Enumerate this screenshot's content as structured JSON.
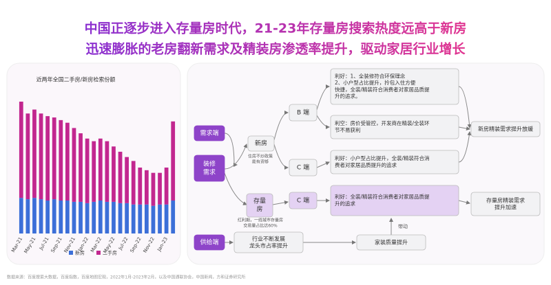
{
  "header": {
    "title_lines": [
      "中国正逐步进入存量房时代，21-23年存量房搜索热度远高于新房",
      "迅速膨胀的老房翻新需求及精装房渗透率提升，驱动家居行业增长"
    ]
  },
  "chart_data": {
    "type": "bar",
    "stacked": true,
    "title": "近两年全国二手房/新房检索份额",
    "categories": [
      "Mar-21",
      null,
      "May-21",
      null,
      "Jul-21",
      null,
      "Sep-21",
      null,
      "Nov-21",
      null,
      "Jan-22",
      null,
      "Mar-22",
      null,
      "May-22",
      null,
      "Jul-22",
      null,
      "Sep-22",
      null,
      "Nov-22",
      null,
      "Jan-23",
      null
    ],
    "series": [
      {
        "name": "新房",
        "color": "#3c6fd8",
        "values": [
          27,
          26,
          27,
          26,
          25,
          26,
          25,
          25,
          24,
          24,
          23,
          24,
          25,
          24,
          24,
          23,
          23,
          22,
          22,
          22,
          21,
          22,
          22,
          25
        ]
      },
      {
        "name": "二手房",
        "color": "#c2278f",
        "values": [
          73,
          65,
          67,
          65,
          64,
          62,
          61,
          59,
          56,
          52,
          49,
          46,
          47,
          46,
          42,
          39,
          35,
          33,
          28,
          26,
          25,
          24,
          28,
          60
        ]
      }
    ]
  },
  "diagram": {
    "nodes": [
      {
        "lines": [
          "需求端"
        ]
      },
      {
        "lines": [
          "装修",
          "需求"
        ]
      },
      {
        "lines": [
          "供给端"
        ]
      },
      {
        "lines": [
          "新房"
        ]
      },
      {
        "lines": [
          "住房不炒政策",
          "能有资够"
        ]
      },
      {
        "lines": [
          "存量",
          "房"
        ]
      },
      {
        "lines": [
          "红利期，一线城市存量房",
          "交易量占比达60%"
        ]
      },
      {
        "lines": [
          "B 端"
        ]
      },
      {
        "lines": [
          "C 端"
        ]
      },
      {
        "lines": [
          "C 端"
        ]
      },
      {
        "lines": [
          "利好：1、全装修符合环保理念",
          "2、小户型占比提升，拎包入住方便",
          "快捷，全装/精装符合消费者对家居品质提",
          "升的追求。"
        ]
      },
      {
        "lines": [
          "利空：房价受管控，开发商在精装/全装环",
          "节不易获利"
        ]
      },
      {
        "lines": [
          "利好：小户型占比提升，全装/精装符合消",
          "费者对家居品质提升的追求"
        ]
      },
      {
        "lines": [
          "利好：全装/精装符合消费者对家居品质提",
          "升的追求"
        ]
      },
      {
        "lines": [
          "新房精装需求提升放缓"
        ]
      },
      {
        "lines": [
          "存量房精装需求",
          "提升加速"
        ]
      },
      {
        "lines": [
          "带动"
        ]
      },
      {
        "lines": [
          "行业不断发展",
          "龙头市占率提升"
        ]
      },
      {
        "lines": [
          "家装质量提升"
        ]
      }
    ]
  },
  "footer": {
    "source": "数据来源：百度搜索大数据，百度指数，百度地图宏观，2022年1月-2023年2月，以及中国通联协会，中国新闻，方和证券研究所"
  }
}
